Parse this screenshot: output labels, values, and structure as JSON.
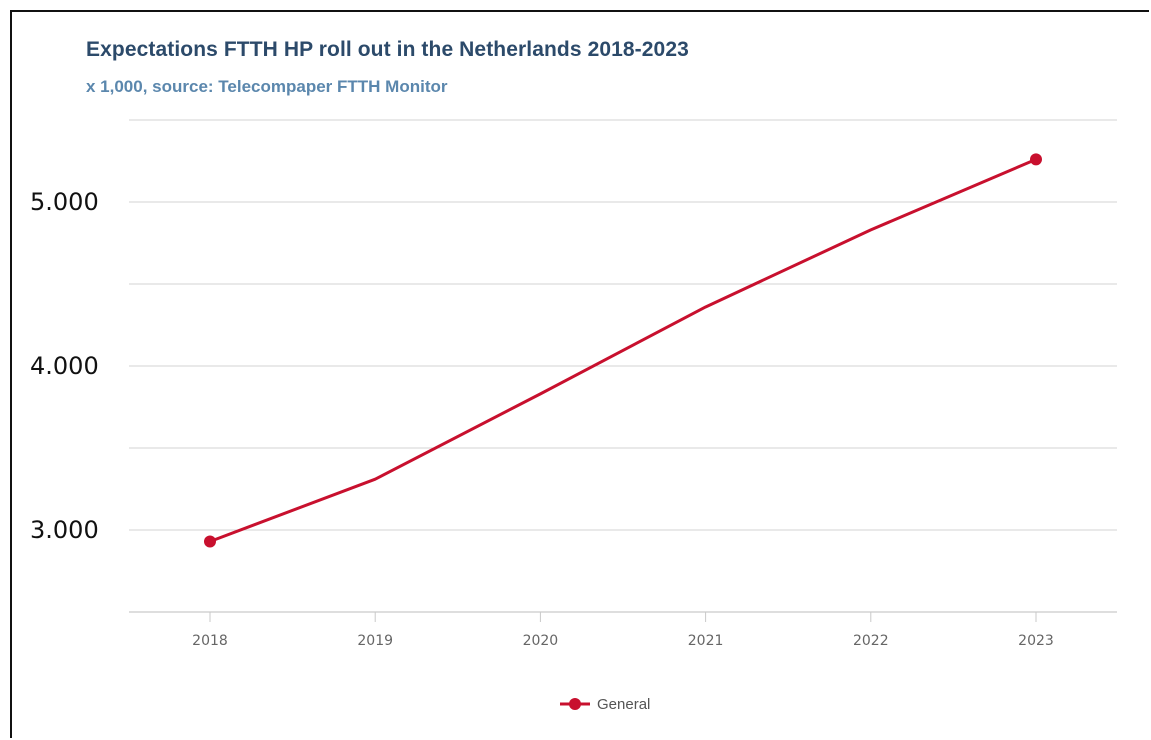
{
  "chart_data": {
    "type": "line",
    "title": "Expectations FTTH HP roll out in the Netherlands 2018-2023",
    "subtitle": "x 1,000, source: Telecompaper FTTH Monitor",
    "xlabel": "",
    "ylabel": "",
    "categories": [
      "2018",
      "2019",
      "2020",
      "2021",
      "2022",
      "2023"
    ],
    "series": [
      {
        "name": "General",
        "values": [
          2930,
          3310,
          3830,
          4360,
          4830,
          5260
        ],
        "color": "#c8102e"
      }
    ],
    "yticks": [
      {
        "value": 3000,
        "label": "3.000"
      },
      {
        "value": 4000,
        "label": "4.000"
      },
      {
        "value": 5000,
        "label": "5.000"
      }
    ],
    "ylim": [
      2500,
      5500
    ],
    "grid": true,
    "gridline_values": [
      2500,
      3000,
      3500,
      4000,
      4500,
      5000,
      5500
    ],
    "legend_position": "bottom-center",
    "markers": "endpoints"
  }
}
